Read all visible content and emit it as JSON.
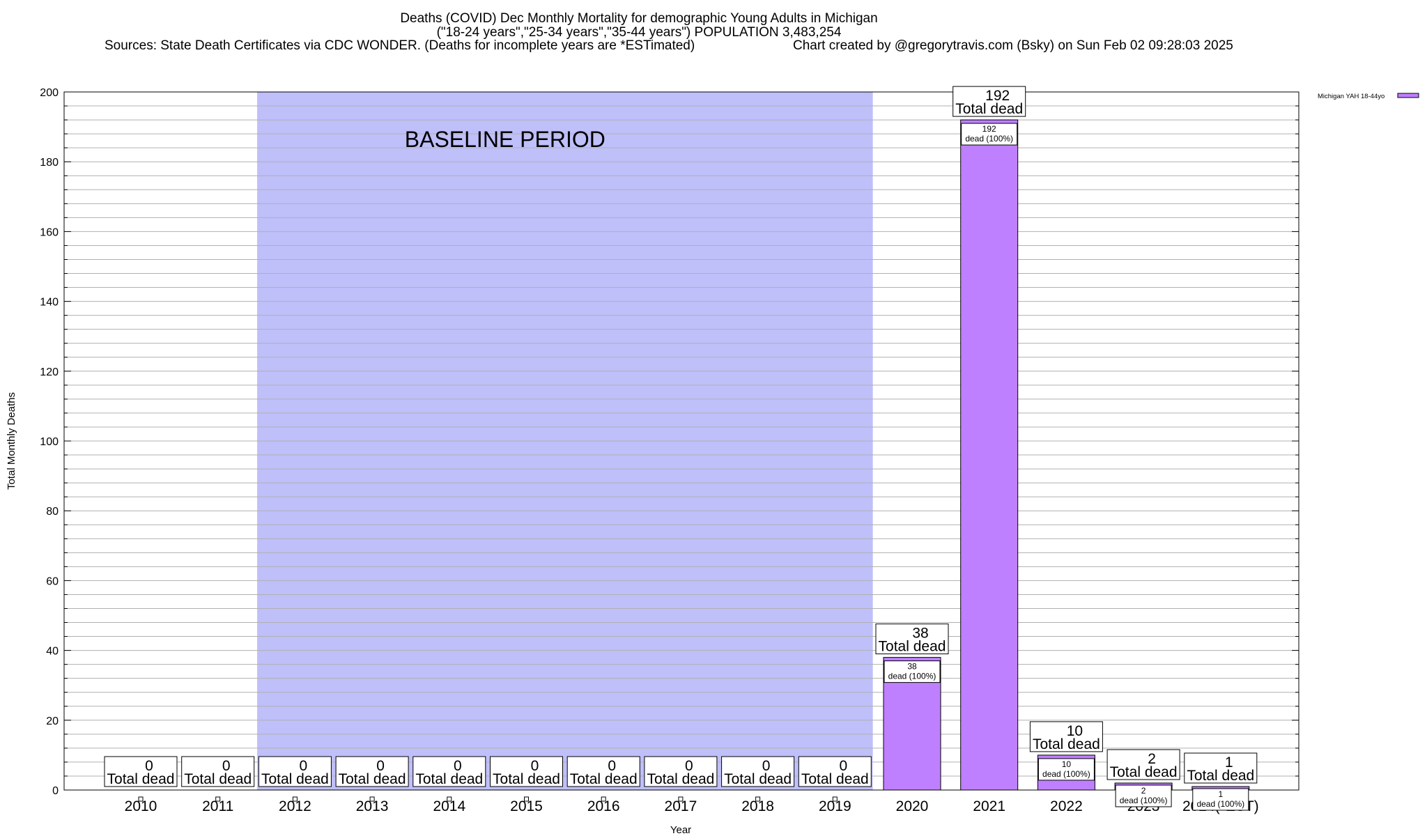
{
  "chart_data": {
    "type": "bar",
    "title_lines": [
      "Deaths (COVID) Dec Monthly Mortality for demographic Young Adults in Michigan",
      "(\"18-24 years\",\"25-34 years\",\"35-44 years\") POPULATION 3,483,254"
    ],
    "sources": "Sources: State Death Certificates via CDC WONDER. (Deaths for incomplete years are *ESTimated)",
    "credit": "Chart created by @gregorytravis.com (Bsky) on Sun Feb 02 09:28:03 2025",
    "xlabel": "Year",
    "ylabel": "Total Monthly Deaths",
    "ylim": [
      0,
      200
    ],
    "y_major_ticks": [
      0,
      20,
      40,
      60,
      80,
      100,
      120,
      140,
      160,
      180,
      200
    ],
    "y_minor_step": 4,
    "grid": true,
    "categories": [
      "2010",
      "2011",
      "2012",
      "2013",
      "2014",
      "2015",
      "2016",
      "2017",
      "2018",
      "2019",
      "2020",
      "2021",
      "2022",
      "2023",
      "2024(*EST)"
    ],
    "series": [
      {
        "name": "Michigan YAH 18-44yo",
        "color": "#bf80ff",
        "values": [
          0,
          0,
          0,
          0,
          0,
          0,
          0,
          0,
          0,
          0,
          38,
          192,
          10,
          2,
          1
        ]
      }
    ],
    "total_label_suffix": "Total dead",
    "dead_label_text": "dead (100%)",
    "baseline": {
      "label": "BASELINE PERIOD",
      "from": "2012",
      "to": "2019",
      "color": "#bfbffa"
    },
    "legend_position": "top-right"
  }
}
